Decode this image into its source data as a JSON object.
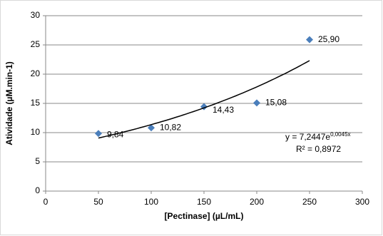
{
  "chart_data": {
    "type": "scatter",
    "x_label": "[Pectinase] (µL/mL)",
    "y_label": "Atividade  (µM.min-1)",
    "x": [
      50,
      100,
      150,
      200,
      250
    ],
    "series": [
      {
        "name": "Atividade",
        "color": "#4a7ebb",
        "values": [
          9.84,
          10.82,
          14.43,
          15.08,
          25.9
        ],
        "value_labels": [
          "9,84",
          "10,82",
          "14,43",
          "15,08",
          "25,90"
        ]
      }
    ],
    "trendline": {
      "type": "exponential",
      "a": 7.2447,
      "b": 0.0045,
      "equation": "y = 7,2447e",
      "exponent": "0,0045x",
      "r2_label": "R² = 0,8972"
    },
    "xlim": [
      0,
      300
    ],
    "xticks": [
      0,
      50,
      100,
      150,
      200,
      250,
      300
    ],
    "ylim": [
      0,
      30
    ],
    "yticks": [
      0,
      5,
      10,
      15,
      20,
      25,
      30
    ],
    "grid": true
  }
}
